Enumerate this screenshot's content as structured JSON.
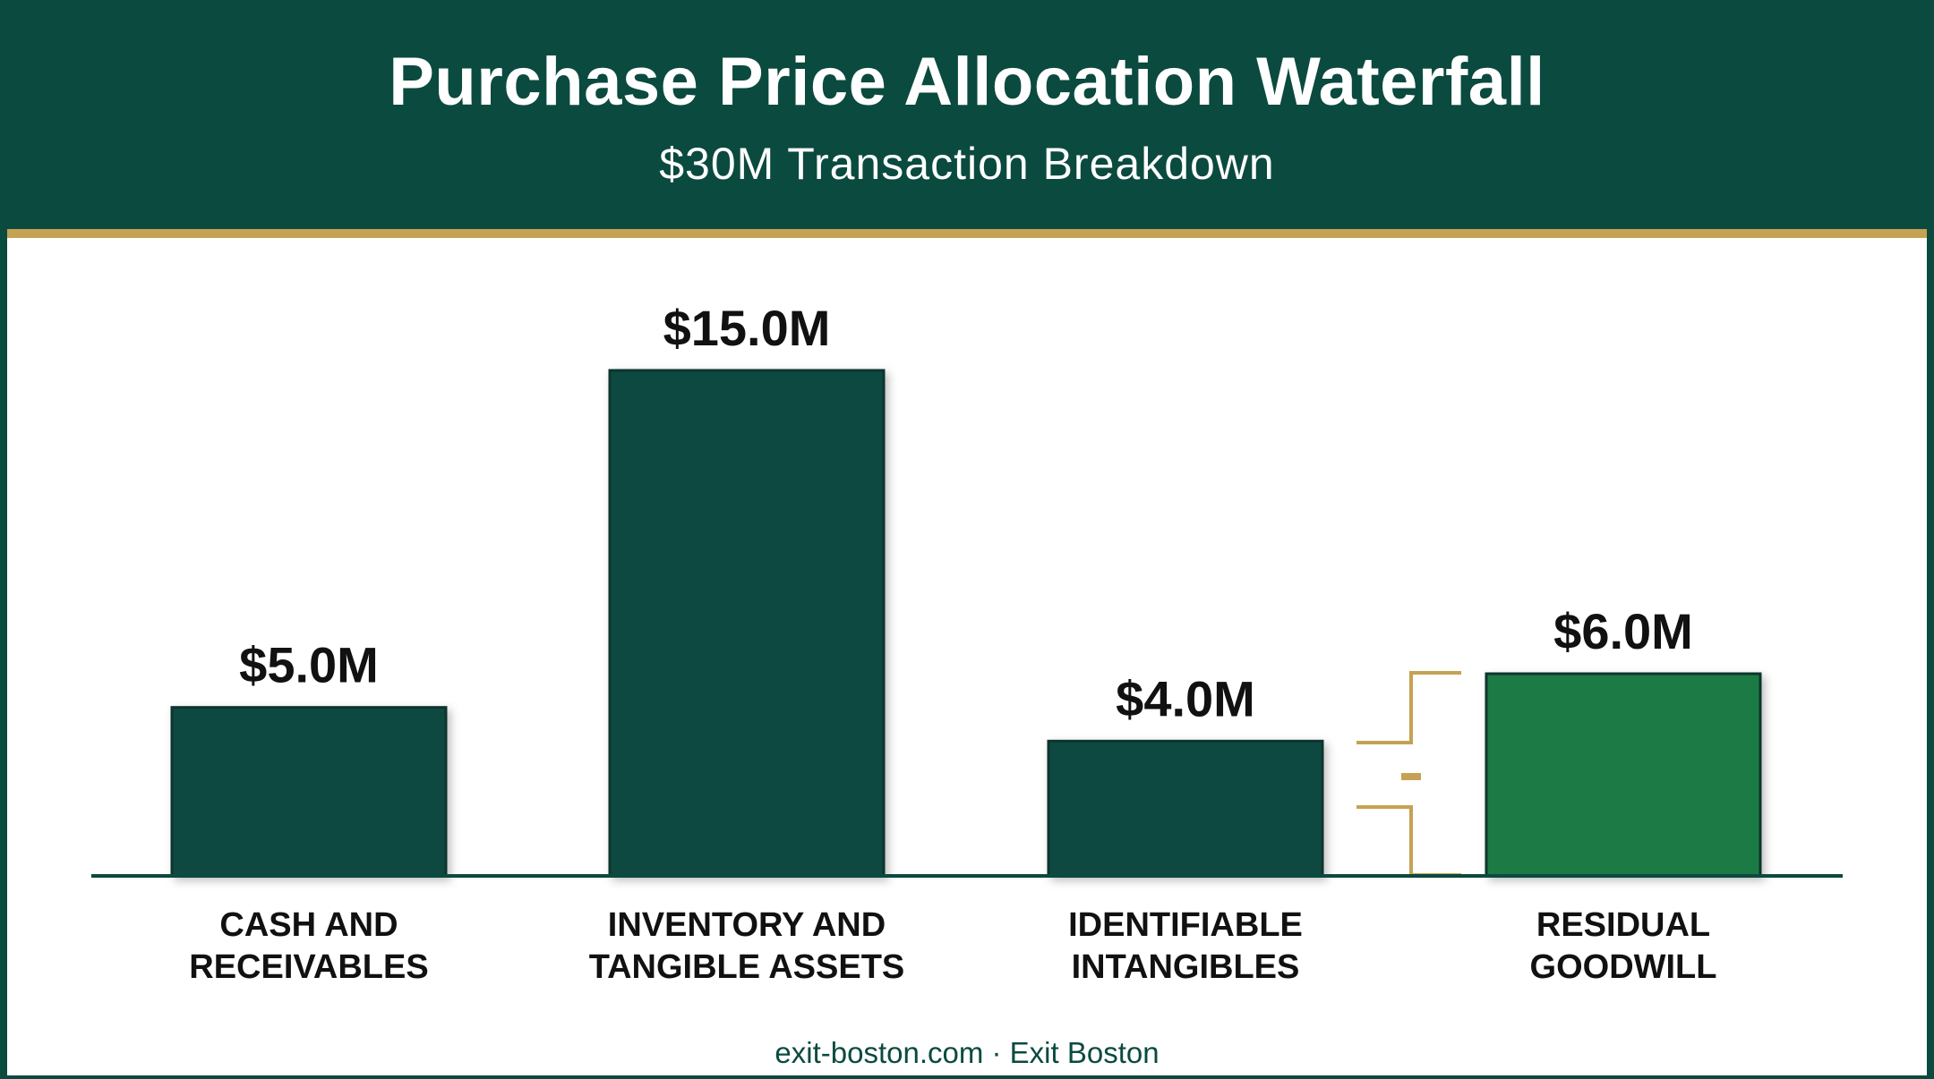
{
  "header": {
    "title": "Purchase Price Allocation Waterfall",
    "subtitle": "$30M Transaction Breakdown"
  },
  "footer": {
    "text": "exit-boston.com · Exit Boston"
  },
  "colors": {
    "primary": "#0b4a3f",
    "accent": "#c5a253",
    "goodwill": "#1a7a45",
    "background": "#ffffff"
  },
  "chart_data": {
    "type": "bar",
    "title": "Purchase Price Allocation Waterfall",
    "subtitle": "$30M Transaction Breakdown",
    "unit": "$M",
    "categories": [
      [
        "CASH AND",
        "RECEIVABLES"
      ],
      [
        "INVENTORY AND",
        "TANGIBLE ASSETS"
      ],
      [
        "IDENTIFIABLE",
        "INTANGIBLES"
      ],
      [
        "RESIDUAL",
        "GOODWILL"
      ]
    ],
    "values": [
      5.0,
      15.0,
      4.0,
      6.0
    ],
    "value_labels": [
      "$5.0M",
      "$15.0M",
      "$4.0M",
      "$6.0M"
    ],
    "bar_colors": [
      "#0b4a3f",
      "#0b4a3f",
      "#0b4a3f",
      "#1a7a45"
    ],
    "ylim": [
      0,
      15
    ],
    "grid": false,
    "legend": "none",
    "annotation": "bracket (gold) between Identifiable Intangibles and Residual Goodwill"
  }
}
